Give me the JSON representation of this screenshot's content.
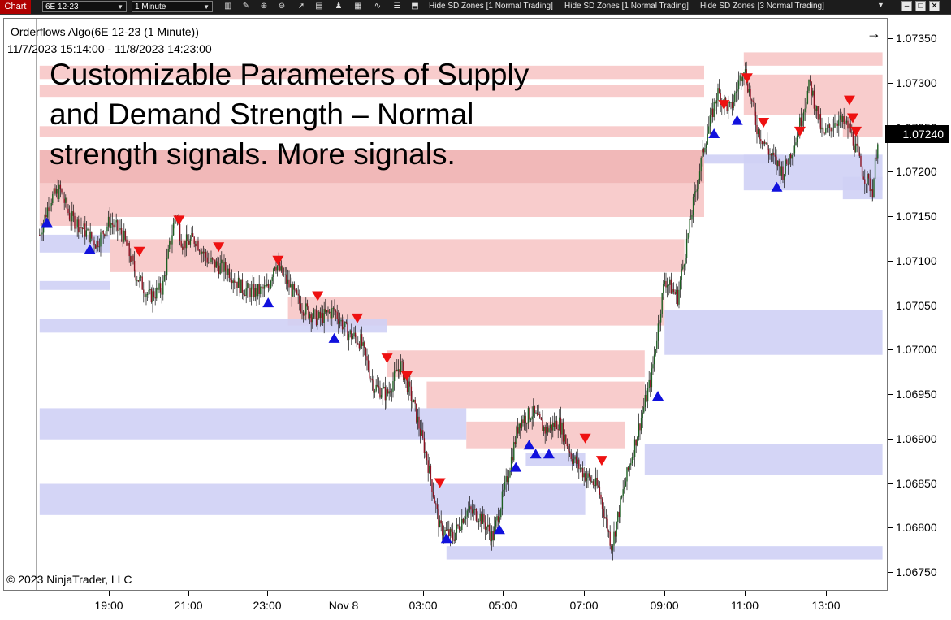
{
  "toolbar": {
    "chart_tab": "Chart",
    "instrument": "6E 12-23",
    "interval": "1 Minute",
    "buttons": [
      "Hide SD Zones [1 Normal Trading]",
      "Hide SD Zones [1 Normal Trading]",
      "Hide SD Zones [3 Normal Trading]"
    ],
    "icons": [
      "bars-icon",
      "pencil-icon",
      "zoom-in-icon",
      "zoom-out-icon",
      "pointer-icon",
      "properties-icon",
      "strategy-icon",
      "chart-style-icon",
      "indicators-icon"
    ]
  },
  "indicator": {
    "title": "Orderflows Algo(6E 12-23 (1 Minute))",
    "date_range": "11/7/2023 15:14:00 - 11/8/2023 14:23:00"
  },
  "headline": "Customizable Parameters of Supply\nand Demand Strength – Normal\nstrength signals. More signals.",
  "copyright": "© 2023 NinjaTrader, LLC",
  "nav_arrow": "→",
  "current_price": "1.07240",
  "colors": {
    "supply_zone": "#f7c6c6",
    "supply_zone_strong": "#f0b0b0",
    "demand_zone": "#cfd0f5",
    "sell_signal": "#ee1111",
    "buy_signal": "#1111dd",
    "candle_up": "#1b5e20",
    "candle_down": "#8a1020",
    "chart_tab": "#b00000"
  },
  "chart_data": {
    "type": "candlestick",
    "y_axis": {
      "ticks": [
        "1.07350",
        "1.07300",
        "1.07250",
        "1.07200",
        "1.07150",
        "1.07100",
        "1.07050",
        "1.07000",
        "1.06950",
        "1.06900",
        "1.06850",
        "1.06800",
        "1.06750"
      ],
      "ylim": [
        1.0673,
        1.0736
      ]
    },
    "x_axis": {
      "ticks": [
        "19:00",
        "21:00",
        "23:00",
        "Nov 8",
        "03:00",
        "05:00",
        "07:00",
        "09:00",
        "11:00",
        "13:00"
      ]
    },
    "supply_zones": [
      {
        "from": "17:14",
        "to": "10:00",
        "low": 1.07305,
        "high": 1.0732,
        "strong": false
      },
      {
        "from": "17:14",
        "to": "10:00",
        "low": 1.07285,
        "high": 1.07298,
        "strong": false
      },
      {
        "from": "17:14",
        "to": "10:00",
        "low": 1.0724,
        "high": 1.07252,
        "strong": false
      },
      {
        "from": "17:14",
        "to": "10:00",
        "low": 1.07188,
        "high": 1.07225,
        "strong": true
      },
      {
        "from": "17:14",
        "to": "10:00",
        "low": 1.0715,
        "high": 1.07188,
        "strong": false
      },
      {
        "from": "17:14",
        "to": "19:00",
        "low": 1.0714,
        "high": 1.0715,
        "strong": false
      },
      {
        "from": "19:00",
        "to": "09:30",
        "low": 1.07088,
        "high": 1.07125,
        "strong": false
      },
      {
        "from": "23:30",
        "to": "09:00",
        "low": 1.07028,
        "high": 1.0706,
        "strong": false
      },
      {
        "from": "02:00",
        "to": "08:30",
        "low": 1.0697,
        "high": 1.07,
        "strong": false
      },
      {
        "from": "03:00",
        "to": "08:30",
        "low": 1.06935,
        "high": 1.06965,
        "strong": false
      },
      {
        "from": "04:00",
        "to": "08:00",
        "low": 1.0689,
        "high": 1.0692,
        "strong": false
      },
      {
        "from": "11:00",
        "to": "14:30",
        "low": 1.0732,
        "high": 1.07335,
        "strong": false
      },
      {
        "from": "11:00",
        "to": "14:30",
        "low": 1.07265,
        "high": 1.0731,
        "strong": false
      },
      {
        "from": "13:30",
        "to": "14:30",
        "low": 1.0724,
        "high": 1.07265,
        "strong": false
      }
    ],
    "demand_zones": [
      {
        "from": "17:14",
        "to": "19:00",
        "low": 1.0711,
        "high": 1.0713
      },
      {
        "from": "17:14",
        "to": "19:00",
        "low": 1.07068,
        "high": 1.07078
      },
      {
        "from": "17:14",
        "to": "02:00",
        "low": 1.0702,
        "high": 1.07035
      },
      {
        "from": "17:14",
        "to": "04:00",
        "low": 1.069,
        "high": 1.06935
      },
      {
        "from": "17:14",
        "to": "07:00",
        "low": 1.06815,
        "high": 1.0685
      },
      {
        "from": "03:30",
        "to": "14:30",
        "low": 1.06765,
        "high": 1.0678
      },
      {
        "from": "05:30",
        "to": "07:00",
        "low": 1.0687,
        "high": 1.06885
      },
      {
        "from": "08:30",
        "to": "14:30",
        "low": 1.0686,
        "high": 1.06895
      },
      {
        "from": "09:00",
        "to": "14:30",
        "low": 1.06995,
        "high": 1.07045
      },
      {
        "from": "10:00",
        "to": "12:00",
        "low": 1.0721,
        "high": 1.0722
      },
      {
        "from": "11:00",
        "to": "14:30",
        "low": 1.0718,
        "high": 1.0722
      },
      {
        "from": "13:30",
        "to": "14:30",
        "low": 1.0717,
        "high": 1.07195
      }
    ],
    "sell_signals": [
      {
        "t": "19:45",
        "price": 1.071
      },
      {
        "t": "20:45",
        "price": 1.07135
      },
      {
        "t": "21:45",
        "price": 1.07105
      },
      {
        "t": "23:15",
        "price": 1.0709
      },
      {
        "t": "00:15",
        "price": 1.0705
      },
      {
        "t": "01:15",
        "price": 1.07025
      },
      {
        "t": "02:00",
        "price": 1.0698
      },
      {
        "t": "02:30",
        "price": 1.0696
      },
      {
        "t": "03:20",
        "price": 1.0684
      },
      {
        "t": "07:00",
        "price": 1.0689
      },
      {
        "t": "07:25",
        "price": 1.06865
      },
      {
        "t": "10:30",
        "price": 1.07265
      },
      {
        "t": "11:05",
        "price": 1.07295
      },
      {
        "t": "11:30",
        "price": 1.07245
      },
      {
        "t": "12:25",
        "price": 1.07235
      },
      {
        "t": "13:40",
        "price": 1.0727
      },
      {
        "t": "13:45",
        "price": 1.0725
      },
      {
        "t": "13:50",
        "price": 1.07235
      }
    ],
    "buy_signals": [
      {
        "t": "17:25",
        "price": 1.07155
      },
      {
        "t": "18:30",
        "price": 1.07125
      },
      {
        "t": "23:00",
        "price": 1.07065
      },
      {
        "t": "00:40",
        "price": 1.07025
      },
      {
        "t": "03:30",
        "price": 1.068
      },
      {
        "t": "04:50",
        "price": 1.0681
      },
      {
        "t": "05:15",
        "price": 1.0688
      },
      {
        "t": "05:35",
        "price": 1.06905
      },
      {
        "t": "05:45",
        "price": 1.06895
      },
      {
        "t": "06:05",
        "price": 1.06895
      },
      {
        "t": "08:50",
        "price": 1.0696
      },
      {
        "t": "10:15",
        "price": 1.07255
      },
      {
        "t": "10:50",
        "price": 1.0727
      },
      {
        "t": "11:50",
        "price": 1.07195
      }
    ],
    "close_path": [
      [
        "17:14",
        1.0713
      ],
      [
        "17:30",
        1.0717
      ],
      [
        "17:45",
        1.0718
      ],
      [
        "18:00",
        1.0715
      ],
      [
        "18:15",
        1.0714
      ],
      [
        "18:40",
        1.0712
      ],
      [
        "19:00",
        1.07145
      ],
      [
        "19:20",
        1.0713
      ],
      [
        "19:40",
        1.07085
      ],
      [
        "20:00",
        1.0706
      ],
      [
        "20:20",
        1.0707
      ],
      [
        "20:40",
        1.07155
      ],
      [
        "20:50",
        1.0712
      ],
      [
        "21:10",
        1.07125
      ],
      [
        "21:30",
        1.071
      ],
      [
        "22:00",
        1.0709
      ],
      [
        "22:20",
        1.0707
      ],
      [
        "22:40",
        1.07065
      ],
      [
        "23:00",
        1.0707
      ],
      [
        "23:10",
        1.071
      ],
      [
        "23:30",
        1.07075
      ],
      [
        "23:50",
        1.0705
      ],
      [
        "00:15",
        1.07035
      ],
      [
        "00:40",
        1.07045
      ],
      [
        "01:00",
        1.0702
      ],
      [
        "01:20",
        1.0701
      ],
      [
        "01:40",
        1.0696
      ],
      [
        "02:00",
        1.0695
      ],
      [
        "02:20",
        1.06985
      ],
      [
        "02:40",
        1.0694
      ],
      [
        "03:00",
        1.0688
      ],
      [
        "03:20",
        1.068
      ],
      [
        "03:40",
        1.0679
      ],
      [
        "04:00",
        1.0682
      ],
      [
        "04:20",
        1.06815
      ],
      [
        "04:40",
        1.0679
      ],
      [
        "05:00",
        1.0685
      ],
      [
        "05:20",
        1.0692
      ],
      [
        "05:40",
        1.0693
      ],
      [
        "06:00",
        1.0691
      ],
      [
        "06:20",
        1.0692
      ],
      [
        "06:40",
        1.0688
      ],
      [
        "07:00",
        1.0686
      ],
      [
        "07:20",
        1.06845
      ],
      [
        "07:40",
        1.0678
      ],
      [
        "08:00",
        1.0685
      ],
      [
        "08:20",
        1.0691
      ],
      [
        "08:40",
        1.0697
      ],
      [
        "09:00",
        1.0708
      ],
      [
        "09:20",
        1.0706
      ],
      [
        "09:40",
        1.0715
      ],
      [
        "10:00",
        1.0723
      ],
      [
        "10:20",
        1.0729
      ],
      [
        "10:40",
        1.0727
      ],
      [
        "11:00",
        1.0732
      ],
      [
        "11:20",
        1.0725
      ],
      [
        "11:40",
        1.0722
      ],
      [
        "12:00",
        1.072
      ],
      [
        "12:20",
        1.0724
      ],
      [
        "12:40",
        1.073
      ],
      [
        "13:00",
        1.0724
      ],
      [
        "13:20",
        1.0726
      ],
      [
        "13:40",
        1.0725
      ],
      [
        "14:00",
        1.072
      ],
      [
        "14:15",
        1.0718
      ],
      [
        "14:23",
        1.0724
      ]
    ]
  }
}
